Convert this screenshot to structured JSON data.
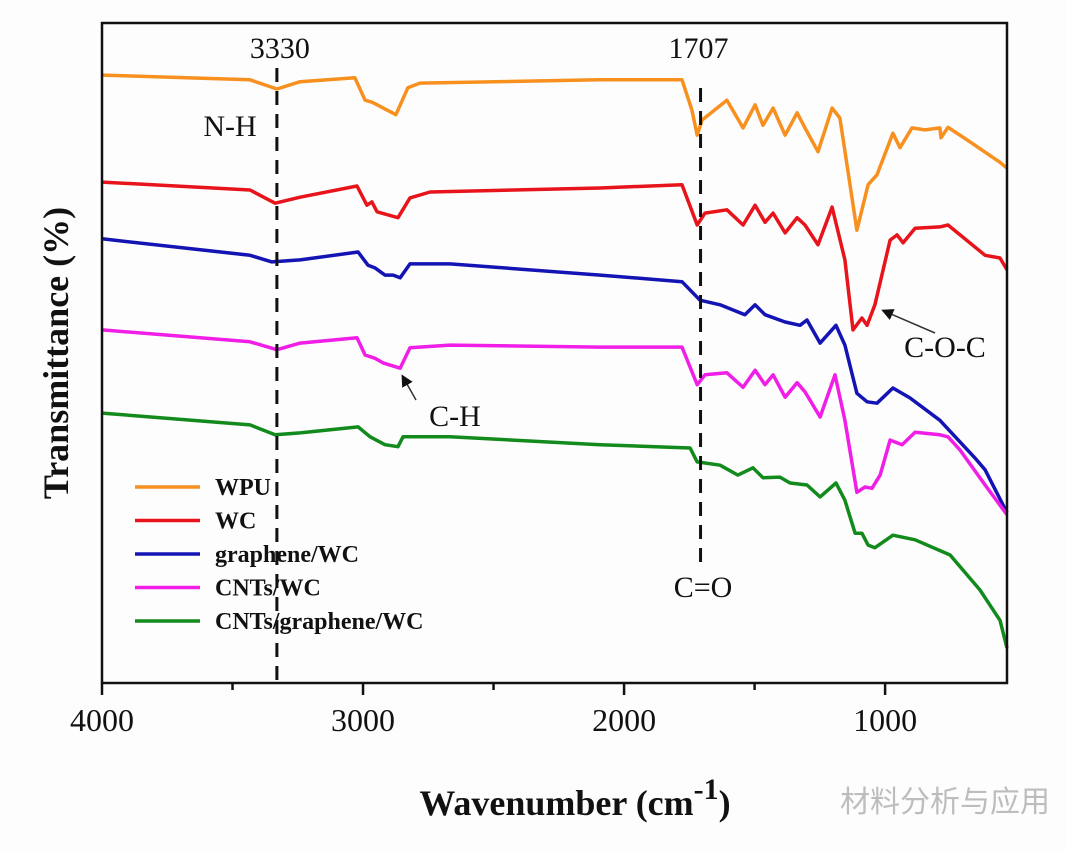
{
  "chart_data": {
    "type": "line",
    "title": "",
    "xlabel": "Wavenumber (cm",
    "xlabel_sup": "-1",
    "xlabel_close": ")",
    "ylabel": "Transmittance (%)",
    "xlim": [
      4000,
      533
    ],
    "x_reversed": true,
    "ylim": [
      0,
      100
    ],
    "y_ticks_shown": false,
    "grid": false,
    "legend_placement": "bottom-left",
    "x_ticks": [
      4000,
      3000,
      2000,
      1000
    ],
    "x_tick_labels": [
      "4000",
      "3000",
      "2000",
      "1000"
    ],
    "x_minor_ticks": [
      3500,
      2500,
      1500
    ],
    "series": [
      {
        "name": "WPU",
        "color": "#f7901e",
        "points": [
          [
            4000,
            92.1
          ],
          [
            3433,
            91.4
          ],
          [
            3330,
            90.0
          ],
          [
            3241,
            91.1
          ],
          [
            3031,
            91.7
          ],
          [
            2992,
            88.3
          ],
          [
            2966,
            88.0
          ],
          [
            2946,
            87.6
          ],
          [
            2874,
            86.1
          ],
          [
            2828,
            90.2
          ],
          [
            2782,
            90.9
          ],
          [
            2092,
            91.4
          ],
          [
            1778,
            91.4
          ],
          [
            1740,
            86.8
          ],
          [
            1720,
            83.0
          ],
          [
            1701,
            85.3
          ],
          [
            1606,
            88.3
          ],
          [
            1544,
            84.1
          ],
          [
            1498,
            87.6
          ],
          [
            1468,
            84.5
          ],
          [
            1429,
            87.1
          ],
          [
            1383,
            83.0
          ],
          [
            1337,
            86.4
          ],
          [
            1307,
            84.1
          ],
          [
            1257,
            80.5
          ],
          [
            1203,
            87.1
          ],
          [
            1173,
            85.6
          ],
          [
            1108,
            68.6
          ],
          [
            1065,
            75.5
          ],
          [
            1031,
            77.0
          ],
          [
            970,
            83.3
          ],
          [
            943,
            81.1
          ],
          [
            897,
            84.1
          ],
          [
            847,
            83.8
          ],
          [
            790,
            84.1
          ],
          [
            786,
            82.6
          ],
          [
            759,
            84.2
          ],
          [
            675,
            82.0
          ],
          [
            560,
            78.9
          ],
          [
            533,
            78.0
          ]
        ]
      },
      {
        "name": "WC",
        "color": "#e8141b",
        "points": [
          [
            4000,
            75.9
          ],
          [
            3433,
            74.7
          ],
          [
            3337,
            72.7
          ],
          [
            3241,
            73.6
          ],
          [
            3023,
            75.3
          ],
          [
            2985,
            72.4
          ],
          [
            2966,
            72.9
          ],
          [
            2946,
            71.4
          ],
          [
            2866,
            70.5
          ],
          [
            2820,
            73.5
          ],
          [
            2743,
            74.4
          ],
          [
            2092,
            75.0
          ],
          [
            1778,
            75.5
          ],
          [
            1720,
            69.4
          ],
          [
            1690,
            71.2
          ],
          [
            1606,
            71.7
          ],
          [
            1544,
            69.4
          ],
          [
            1498,
            72.4
          ],
          [
            1460,
            69.8
          ],
          [
            1429,
            71.2
          ],
          [
            1383,
            68.2
          ],
          [
            1337,
            70.5
          ],
          [
            1307,
            69.4
          ],
          [
            1257,
            66.4
          ],
          [
            1203,
            72.1
          ],
          [
            1154,
            64.1
          ],
          [
            1123,
            53.5
          ],
          [
            1089,
            55.3
          ],
          [
            1069,
            54.2
          ],
          [
            1039,
            57.3
          ],
          [
            981,
            67.1
          ],
          [
            954,
            67.9
          ],
          [
            931,
            66.7
          ],
          [
            885,
            68.9
          ],
          [
            790,
            69.1
          ],
          [
            759,
            69.4
          ],
          [
            617,
            64.8
          ],
          [
            560,
            64.4
          ],
          [
            533,
            62.6
          ]
        ]
      },
      {
        "name": "graphene/WC",
        "color": "#1414b4",
        "points": [
          [
            4000,
            67.3
          ],
          [
            3433,
            64.8
          ],
          [
            3349,
            63.8
          ],
          [
            3241,
            64.1
          ],
          [
            3019,
            65.3
          ],
          [
            2981,
            63.3
          ],
          [
            2954,
            62.9
          ],
          [
            2916,
            61.8
          ],
          [
            2885,
            61.8
          ],
          [
            2858,
            61.4
          ],
          [
            2820,
            63.5
          ],
          [
            2667,
            63.5
          ],
          [
            2092,
            61.8
          ],
          [
            1778,
            60.8
          ],
          [
            1709,
            58.0
          ],
          [
            1632,
            57.3
          ],
          [
            1537,
            55.8
          ],
          [
            1498,
            57.3
          ],
          [
            1460,
            55.8
          ],
          [
            1383,
            54.7
          ],
          [
            1326,
            54.2
          ],
          [
            1299,
            55.0
          ],
          [
            1249,
            51.5
          ],
          [
            1188,
            54.2
          ],
          [
            1154,
            51.2
          ],
          [
            1108,
            43.9
          ],
          [
            1069,
            42.6
          ],
          [
            1031,
            42.4
          ],
          [
            970,
            44.7
          ],
          [
            905,
            43.2
          ],
          [
            790,
            39.8
          ],
          [
            656,
            34.1
          ],
          [
            617,
            32.3
          ],
          [
            533,
            25.8
          ]
        ]
      },
      {
        "name": "CNTs/WC",
        "color": "#f01ee6",
        "points": [
          [
            4000,
            53.5
          ],
          [
            3433,
            51.7
          ],
          [
            3330,
            50.5
          ],
          [
            3241,
            51.5
          ],
          [
            3023,
            52.3
          ],
          [
            2992,
            49.7
          ],
          [
            2954,
            49.2
          ],
          [
            2923,
            48.5
          ],
          [
            2858,
            47.7
          ],
          [
            2820,
            50.8
          ],
          [
            2667,
            51.2
          ],
          [
            2092,
            50.9
          ],
          [
            1778,
            50.9
          ],
          [
            1720,
            45.2
          ],
          [
            1690,
            46.7
          ],
          [
            1606,
            47.0
          ],
          [
            1544,
            44.8
          ],
          [
            1498,
            47.4
          ],
          [
            1460,
            45.2
          ],
          [
            1429,
            46.7
          ],
          [
            1383,
            43.3
          ],
          [
            1337,
            45.5
          ],
          [
            1307,
            44.1
          ],
          [
            1249,
            40.3
          ],
          [
            1192,
            46.7
          ],
          [
            1154,
            39.8
          ],
          [
            1108,
            28.9
          ],
          [
            1077,
            29.7
          ],
          [
            1050,
            29.5
          ],
          [
            1019,
            31.5
          ],
          [
            981,
            36.8
          ],
          [
            935,
            36.1
          ],
          [
            885,
            38.0
          ],
          [
            790,
            37.6
          ],
          [
            759,
            37.3
          ],
          [
            713,
            35.3
          ],
          [
            617,
            30.0
          ],
          [
            533,
            25.5
          ]
        ]
      },
      {
        "name": "CNTs/graphene/WC",
        "color": "#138a1c",
        "points": [
          [
            4000,
            40.9
          ],
          [
            3433,
            39.1
          ],
          [
            3337,
            37.6
          ],
          [
            3241,
            37.9
          ],
          [
            3019,
            38.8
          ],
          [
            2973,
            37.3
          ],
          [
            2916,
            36.1
          ],
          [
            2866,
            35.8
          ],
          [
            2847,
            37.3
          ],
          [
            2667,
            37.3
          ],
          [
            2092,
            36.1
          ],
          [
            1747,
            35.6
          ],
          [
            1720,
            33.5
          ],
          [
            1632,
            33.0
          ],
          [
            1564,
            31.5
          ],
          [
            1506,
            32.6
          ],
          [
            1468,
            31.1
          ],
          [
            1403,
            31.2
          ],
          [
            1364,
            30.3
          ],
          [
            1299,
            30.0
          ],
          [
            1249,
            28.2
          ],
          [
            1188,
            30.3
          ],
          [
            1154,
            27.7
          ],
          [
            1115,
            22.7
          ],
          [
            1089,
            22.7
          ],
          [
            1065,
            20.9
          ],
          [
            1039,
            20.5
          ],
          [
            970,
            22.4
          ],
          [
            885,
            21.7
          ],
          [
            751,
            19.4
          ],
          [
            637,
            14.1
          ],
          [
            560,
            9.5
          ],
          [
            533,
            5.3
          ]
        ]
      }
    ],
    "annotations": {
      "nh_line": {
        "wavenumber": 3330,
        "value_label": "3330",
        "group_label": "N-H"
      },
      "co_line": {
        "wavenumber": 1707,
        "value_label": "1707",
        "group_label": "C=O"
      },
      "ch_label": "C-H",
      "coc_label": "C-O-C"
    }
  },
  "watermark": "材料分析与应用"
}
